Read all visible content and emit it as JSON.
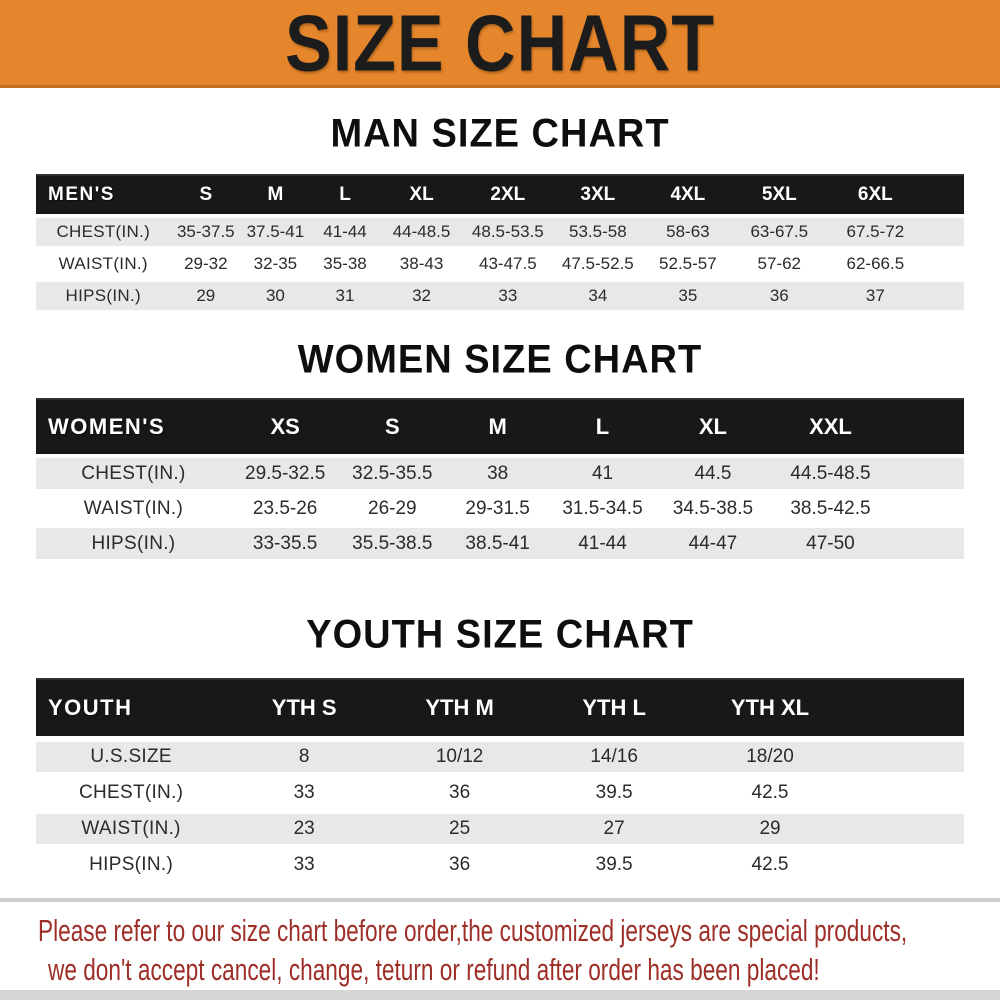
{
  "banner": {
    "title": "SIZE CHART"
  },
  "sections": [
    {
      "heading": "MAN SIZE CHART",
      "table": {
        "header_label": "MEN'S",
        "columns": [
          "S",
          "M",
          "L",
          "XL",
          "2XL",
          "3XL",
          "4XL",
          "5XL",
          "6XL"
        ],
        "rows": [
          {
            "label": "CHEST(IN.)",
            "values": [
              "35-37.5",
              "37.5-41",
              "41-44",
              "44-48.5",
              "48.5-53.5",
              "53.5-58",
              "58-63",
              "63-67.5",
              "67.5-72"
            ]
          },
          {
            "label": "WAIST(IN.)",
            "values": [
              "29-32",
              "32-35",
              "35-38",
              "38-43",
              "43-47.5",
              "47.5-52.5",
              "52.5-57",
              "57-62",
              "62-66.5"
            ]
          },
          {
            "label": "HIPS(IN.)",
            "values": [
              "29",
              "30",
              "31",
              "32",
              "33",
              "34",
              "35",
              "36",
              "37"
            ]
          }
        ]
      }
    },
    {
      "heading": "WOMEN SIZE CHART",
      "table": {
        "header_label": "WOMEN'S",
        "columns": [
          "XS",
          "S",
          "M",
          "L",
          "XL",
          "XXL"
        ],
        "rows": [
          {
            "label": "CHEST(IN.)",
            "values": [
              "29.5-32.5",
              "32.5-35.5",
              "38",
              "41",
              "44.5",
              "44.5-48.5"
            ]
          },
          {
            "label": "WAIST(IN.)",
            "values": [
              "23.5-26",
              "26-29",
              "29-31.5",
              "31.5-34.5",
              "34.5-38.5",
              "38.5-42.5"
            ]
          },
          {
            "label": "HIPS(IN.)",
            "values": [
              "33-35.5",
              "35.5-38.5",
              "38.5-41",
              "41-44",
              "44-47",
              "47-50"
            ]
          }
        ]
      }
    },
    {
      "heading": "YOUTH SIZE CHART",
      "table": {
        "header_label": "YOUTH",
        "columns": [
          "YTH S",
          "YTH M",
          "YTH L",
          "YTH XL"
        ],
        "rows": [
          {
            "label": "U.S.SIZE",
            "values": [
              "8",
              "10/12",
              "14/16",
              "18/20"
            ]
          },
          {
            "label": "CHEST(IN.)",
            "values": [
              "33",
              "36",
              "39.5",
              "42.5"
            ]
          },
          {
            "label": "WAIST(IN.)",
            "values": [
              "23",
              "25",
              "27",
              "29"
            ]
          },
          {
            "label": "HIPS(IN.)",
            "values": [
              "33",
              "36",
              "39.5",
              "42.5"
            ]
          }
        ]
      }
    }
  ],
  "disclaimer": {
    "line1": "Please refer to our size chart before order,the customized jerseys are special products,",
    "line2": "we don't accept cancel, change, teturn or refund after order has been placed!"
  },
  "colors": {
    "banner_bg": "#E6862C",
    "banner_text": "#1C1C1C",
    "table_header_bg": "#181818",
    "table_header_text": "#FFFFFF",
    "row_shade": "#E8E8E7",
    "row_plain": "#FFFFFF",
    "body_text": "#2B2B2B",
    "disclaimer_text": "#9E2F28"
  }
}
